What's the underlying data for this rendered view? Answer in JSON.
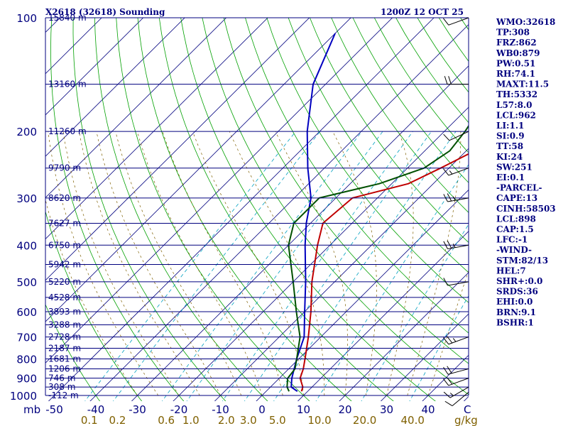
{
  "chart_data": {
    "type": "line",
    "title": "X2618 (32618) Sounding",
    "valid_time": "1200Z 12 OCT 25",
    "pressure_axis_label": "mb",
    "pressure_levels": [
      100,
      200,
      300,
      400,
      500,
      600,
      700,
      800,
      900,
      1000
    ],
    "temperature_axis": {
      "ticks": [
        -50,
        -40,
        -30,
        -20,
        -10,
        0,
        10,
        20,
        30,
        40
      ],
      "unit": "C"
    },
    "mixing_ratio_axis": {
      "ticks": [
        "0.1",
        "0.2",
        "0.6",
        "1.0",
        "2.0",
        "3.0",
        "5.0",
        "10.0",
        "20.0",
        "40.0"
      ],
      "values": [
        0.1,
        0.2,
        0.6,
        1.0,
        2.0,
        3.0,
        5.0,
        10.0,
        20.0,
        40.0
      ],
      "unit": "g/kg"
    },
    "height_labels": [
      {
        "label": "15840 m",
        "p": 100
      },
      {
        "label": "13160 m",
        "p": 150
      },
      {
        "label": "11260 m",
        "p": 200
      },
      {
        "label": "9790 m",
        "p": 250
      },
      {
        "label": "8620 m",
        "p": 300
      },
      {
        "label": "7627 m",
        "p": 350
      },
      {
        "label": "6750 m",
        "p": 400
      },
      {
        "label": "5942 m",
        "p": 450
      },
      {
        "label": "5220 m",
        "p": 500
      },
      {
        "label": "4528 m",
        "p": 550
      },
      {
        "label": "3893 m",
        "p": 600
      },
      {
        "label": "3288 m",
        "p": 650
      },
      {
        "label": "2728 m",
        "p": 700
      },
      {
        "label": "2187 m",
        "p": 750
      },
      {
        "label": "1681 m",
        "p": 800
      },
      {
        "label": "1206 m",
        "p": 850
      },
      {
        "label": "746 m",
        "p": 900
      },
      {
        "label": "308 m",
        "p": 950
      },
      {
        "label": "-112 m",
        "p": 1000
      }
    ],
    "series": [
      {
        "name": "Parcel",
        "color": "#0000c0",
        "points": [
          [
            975,
            7.5
          ],
          [
            950,
            5
          ],
          [
            900,
            3
          ],
          [
            850,
            1.3
          ],
          [
            800,
            -0.5
          ],
          [
            700,
            -4
          ],
          [
            600,
            -10
          ],
          [
            500,
            -17
          ],
          [
            400,
            -26
          ],
          [
            350,
            -31
          ],
          [
            300,
            -36
          ],
          [
            250,
            -44
          ],
          [
            200,
            -53
          ],
          [
            150,
            -63
          ],
          [
            110,
            -70
          ]
        ]
      },
      {
        "name": "Temperature",
        "color": "#c00000",
        "points": [
          [
            975,
            8.5
          ],
          [
            950,
            7.8
          ],
          [
            900,
            5
          ],
          [
            850,
            3.5
          ],
          [
            800,
            1.5
          ],
          [
            700,
            -3
          ],
          [
            600,
            -8.5
          ],
          [
            500,
            -15.5
          ],
          [
            400,
            -23
          ],
          [
            350,
            -27
          ],
          [
            300,
            -26
          ],
          [
            275,
            -16
          ],
          [
            250,
            -12
          ],
          [
            225,
            -8
          ],
          [
            200,
            -9
          ],
          [
            150,
            -10
          ],
          [
            100,
            -10
          ]
        ]
      },
      {
        "name": "Dewpoint",
        "color": "#005000",
        "points": [
          [
            975,
            5.5
          ],
          [
            950,
            4
          ],
          [
            900,
            2
          ],
          [
            850,
            1.5
          ],
          [
            800,
            -0.5
          ],
          [
            700,
            -5
          ],
          [
            600,
            -12
          ],
          [
            500,
            -20
          ],
          [
            400,
            -30
          ],
          [
            350,
            -34
          ],
          [
            300,
            -34
          ],
          [
            275,
            -23
          ],
          [
            250,
            -16
          ],
          [
            225,
            -14
          ],
          [
            200,
            -15
          ],
          [
            150,
            -19
          ],
          [
            100,
            -22
          ]
        ]
      }
    ]
  },
  "indices": [
    "WMO:32618",
    "TP:308",
    "FRZ:862",
    "WB0:879",
    "PW:0.51",
    "RH:74.1",
    "MAXT:11.5",
    "TH:5332",
    "L57:8.0",
    "LCL:962",
    "LI:1.1",
    "SI:0.9",
    "TT:58",
    "KI:24",
    "SW:251",
    "EI:0.1",
    "-PARCEL-",
    "CAPE:13",
    "CINH:58503",
    "LCL:898",
    "CAP:1.5",
    "LFC:-1",
    "-WIND-",
    "STM:82/13",
    "HEL:7",
    "SHR+:0.0",
    "SRDS:36",
    "EHI:0.0",
    "BRN:9.1",
    "BSHR:1"
  ],
  "wind_barbs": [
    {
      "p": 980,
      "dir": 230,
      "spd": 10
    },
    {
      "p": 950,
      "dir": 240,
      "spd": 15
    },
    {
      "p": 900,
      "dir": 250,
      "spd": 20
    },
    {
      "p": 850,
      "dir": 255,
      "spd": 20
    },
    {
      "p": 700,
      "dir": 250,
      "spd": 25
    },
    {
      "p": 500,
      "dir": 260,
      "spd": 10
    },
    {
      "p": 400,
      "dir": 260,
      "spd": 25
    },
    {
      "p": 300,
      "dir": 260,
      "spd": 25
    },
    {
      "p": 250,
      "dir": 250,
      "spd": 15
    },
    {
      "p": 200,
      "dir": 245,
      "spd": 10
    },
    {
      "p": 150,
      "dir": 270,
      "spd": 20
    },
    {
      "p": 100,
      "dir": 250,
      "spd": 10
    }
  ],
  "colors": {
    "isobar": "#00007f",
    "dry_adiabat": "#00a000",
    "moist_adiabat": "#7f6000",
    "mixing_ratio": "#00a0c0",
    "isotherm": "#00007f"
  }
}
